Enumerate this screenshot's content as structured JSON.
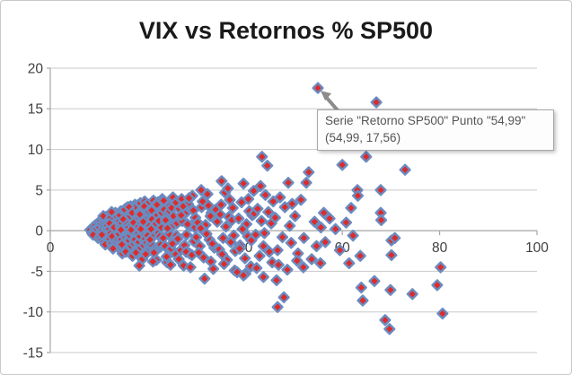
{
  "title": "VIX vs Retornos % SP500",
  "tooltip": {
    "line1": "Serie \"Retorno SP500\" Punto \"54,99\"",
    "line2": "(54,99, 17,56)"
  },
  "colors": {
    "marker_fill": "#dd2b2c",
    "marker_stroke": "#6b8cc0",
    "gridline": "#c9c9c9",
    "axis": "#a6a6a6",
    "tick_label": "#3f3f3f",
    "title_text": "#1a1a1a",
    "cursor": "#8c8c8c",
    "tooltip_border": "#a9a9a9",
    "tooltip_text": "#555555"
  },
  "chart_data": {
    "type": "scatter",
    "title": "VIX vs Retornos % SP500",
    "xlabel": "",
    "ylabel": "",
    "xlim": [
      0,
      100
    ],
    "ylim": [
      -15,
      20
    ],
    "x_ticks": [
      0,
      20,
      40,
      60,
      80,
      100
    ],
    "y_ticks": [
      20,
      15,
      10,
      5,
      0,
      -5,
      -10,
      -15
    ],
    "grid": "horizontal",
    "legend": "none",
    "marker": {
      "shape": "diamond",
      "fill": "#dd2b2c",
      "stroke": "#6b8cc0"
    },
    "series_name": "Retorno SP500",
    "highlighted_point": {
      "x": 54.99,
      "y": 17.56,
      "point_label": "54,99"
    },
    "points": [
      [
        8.2,
        0.1
      ],
      [
        8.6,
        -0.3
      ],
      [
        8.9,
        0.5
      ],
      [
        9.1,
        -0.1
      ],
      [
        9.3,
        0.7
      ],
      [
        9.5,
        -0.6
      ],
      [
        9.6,
        0.3
      ],
      [
        9.8,
        -0.9
      ],
      [
        9.9,
        1.0
      ],
      [
        10.0,
        0.0
      ],
      [
        9.4,
        0.2
      ],
      [
        8.8,
        -0.5
      ],
      [
        10.1,
        0.4
      ],
      [
        10.2,
        -0.7
      ],
      [
        10.3,
        1.2
      ],
      [
        10.4,
        -0.2
      ],
      [
        10.5,
        0.8
      ],
      [
        10.6,
        -1.1
      ],
      [
        10.7,
        0.1
      ],
      [
        10.8,
        1.5
      ],
      [
        10.9,
        -0.4
      ],
      [
        11.0,
        0.6
      ],
      [
        11.1,
        -1.3
      ],
      [
        11.2,
        0.9
      ],
      [
        11.3,
        -0.1
      ],
      [
        11.4,
        1.7
      ],
      [
        11.5,
        -0.8
      ],
      [
        11.6,
        0.3
      ],
      [
        11.7,
        -1.5
      ],
      [
        11.8,
        1.1
      ],
      [
        11.9,
        -0.3
      ],
      [
        12.0,
        0.5
      ],
      [
        10.9,
        1.8
      ],
      [
        11.3,
        -1.7
      ],
      [
        11.7,
        0.7
      ],
      [
        10.6,
        -0.5
      ],
      [
        12.1,
        0.2
      ],
      [
        12.2,
        -1.0
      ],
      [
        12.3,
        1.4
      ],
      [
        12.4,
        -0.3
      ],
      [
        12.5,
        2.0
      ],
      [
        12.6,
        -1.6
      ],
      [
        12.7,
        0.6
      ],
      [
        12.8,
        -2.0
      ],
      [
        12.9,
        1.0
      ],
      [
        13.0,
        -0.6
      ],
      [
        13.1,
        1.8
      ],
      [
        13.2,
        -1.2
      ],
      [
        13.3,
        0.3
      ],
      [
        13.4,
        2.2
      ],
      [
        13.5,
        -0.9
      ],
      [
        13.6,
        0.8
      ],
      [
        13.7,
        -1.9
      ],
      [
        13.8,
        1.3
      ],
      [
        13.9,
        -0.2
      ],
      [
        14.0,
        0.7
      ],
      [
        12.4,
        1.6
      ],
      [
        12.9,
        -2.2
      ],
      [
        13.3,
        2.1
      ],
      [
        13.7,
        -1.4
      ],
      [
        12.2,
        0.9
      ],
      [
        12.7,
        -0.7
      ],
      [
        13.1,
        0.4
      ],
      [
        13.5,
        1.9
      ],
      [
        13.9,
        -1.1
      ],
      [
        12.6,
        2.3
      ],
      [
        14.1,
        -0.4
      ],
      [
        14.2,
        1.2
      ],
      [
        14.3,
        -1.8
      ],
      [
        14.4,
        0.5
      ],
      [
        14.5,
        2.4
      ],
      [
        14.6,
        -1.1
      ],
      [
        14.7,
        0.9
      ],
      [
        14.8,
        -2.4
      ],
      [
        14.9,
        1.6
      ],
      [
        15.0,
        -0.2
      ],
      [
        15.1,
        2.0
      ],
      [
        15.2,
        -1.5
      ],
      [
        15.3,
        0.3
      ],
      [
        15.4,
        2.7
      ],
      [
        15.5,
        -0.8
      ],
      [
        15.6,
        1.1
      ],
      [
        15.7,
        -2.1
      ],
      [
        15.8,
        0.6
      ],
      [
        15.9,
        2.9
      ],
      [
        16.0,
        -0.5
      ],
      [
        14.3,
        1.9
      ],
      [
        14.8,
        -2.8
      ],
      [
        15.2,
        2.3
      ],
      [
        15.7,
        -1.3
      ],
      [
        14.5,
        0.1
      ],
      [
        15.0,
        1.4
      ],
      [
        15.5,
        -2.6
      ],
      [
        15.9,
        0.8
      ],
      [
        14.7,
        -1.7
      ],
      [
        15.3,
        2.6
      ],
      [
        16.1,
        0.4
      ],
      [
        16.2,
        -1.2
      ],
      [
        16.3,
        2.1
      ],
      [
        16.4,
        -0.6
      ],
      [
        16.5,
        3.0
      ],
      [
        16.6,
        -1.9
      ],
      [
        16.7,
        0.8
      ],
      [
        16.8,
        -2.9
      ],
      [
        16.9,
        1.5
      ],
      [
        17.0,
        -0.3
      ],
      [
        17.1,
        2.5
      ],
      [
        17.2,
        -1.6
      ],
      [
        17.3,
        0.2
      ],
      [
        17.4,
        3.2
      ],
      [
        17.5,
        -0.9
      ],
      [
        17.6,
        1.2
      ],
      [
        17.7,
        -2.3
      ],
      [
        17.8,
        0.7
      ],
      [
        17.9,
        3.1
      ],
      [
        18.0,
        -0.4
      ],
      [
        16.4,
        1.8
      ],
      [
        16.9,
        -3.1
      ],
      [
        17.3,
        2.8
      ],
      [
        17.8,
        -1.4
      ],
      [
        16.6,
        0.1
      ],
      [
        17.1,
        1.0
      ],
      [
        17.6,
        -2.7
      ],
      [
        16.2,
        2.9
      ],
      [
        17.4,
        -1.1
      ],
      [
        16.8,
        2.2
      ],
      [
        18.1,
        0.5
      ],
      [
        18.2,
        -1.4
      ],
      [
        18.3,
        2.3
      ],
      [
        18.4,
        -0.7
      ],
      [
        18.5,
        3.4
      ],
      [
        18.6,
        -2.1
      ],
      [
        18.7,
        0.9
      ],
      [
        18.8,
        -3.3
      ],
      [
        18.9,
        1.7
      ],
      [
        19.0,
        -0.2
      ],
      [
        19.1,
        2.7
      ],
      [
        19.2,
        -1.8
      ],
      [
        19.3,
        0.3
      ],
      [
        19.4,
        3.6
      ],
      [
        19.5,
        -1.0
      ],
      [
        19.6,
        1.3
      ],
      [
        19.7,
        -2.5
      ],
      [
        19.8,
        0.8
      ],
      [
        19.9,
        3.3
      ],
      [
        20.0,
        -0.6
      ],
      [
        18.4,
        2.0
      ],
      [
        18.9,
        -3.5
      ],
      [
        19.3,
        3.0
      ],
      [
        19.8,
        -1.5
      ],
      [
        18.6,
        0.2
      ],
      [
        19.1,
        1.1
      ],
      [
        19.6,
        -2.9
      ],
      [
        20.2,
        2.4
      ],
      [
        18.3,
        -4.3
      ],
      [
        20.4,
        0.6
      ],
      [
        20.6,
        -1.6
      ],
      [
        20.8,
        2.5
      ],
      [
        21.0,
        -0.8
      ],
      [
        21.2,
        3.7
      ],
      [
        21.4,
        -2.3
      ],
      [
        21.6,
        1.0
      ],
      [
        21.8,
        -3.6
      ],
      [
        22.0,
        1.9
      ],
      [
        22.2,
        -0.3
      ],
      [
        22.4,
        2.9
      ],
      [
        22.6,
        -2.0
      ],
      [
        22.8,
        0.4
      ],
      [
        23.0,
        3.9
      ],
      [
        20.5,
        -1.1
      ],
      [
        20.9,
        1.4
      ],
      [
        21.3,
        -2.7
      ],
      [
        21.7,
        0.9
      ],
      [
        22.1,
        3.5
      ],
      [
        22.5,
        -0.7
      ],
      [
        22.9,
        2.2
      ],
      [
        21.1,
        -3.8
      ],
      [
        21.9,
        3.2
      ],
      [
        22.7,
        -1.7
      ],
      [
        20.7,
        0.2
      ],
      [
        22.3,
        1.2
      ],
      [
        23.2,
        -0.9
      ],
      [
        23.4,
        2.6
      ],
      [
        23.6,
        -1.9
      ],
      [
        23.8,
        1.1
      ],
      [
        24.0,
        -3.9
      ],
      [
        24.2,
        2.0
      ],
      [
        24.4,
        -0.4
      ],
      [
        24.6,
        3.1
      ],
      [
        24.8,
        -2.2
      ],
      [
        25.0,
        0.5
      ],
      [
        25.2,
        4.1
      ],
      [
        25.4,
        -1.2
      ],
      [
        25.6,
        1.5
      ],
      [
        25.8,
        -2.9
      ],
      [
        26.0,
        0.9
      ],
      [
        23.3,
        3.7
      ],
      [
        23.9,
        -3.2
      ],
      [
        24.5,
        2.4
      ],
      [
        25.1,
        -1.6
      ],
      [
        25.7,
        3.4
      ],
      [
        24.1,
        0.3
      ],
      [
        24.7,
        -4.2
      ],
      [
        25.3,
        1.8
      ],
      [
        25.9,
        -0.6
      ],
      [
        23.7,
        1.3
      ],
      [
        24.9,
        2.8
      ],
      [
        26.2,
        -1.0
      ],
      [
        26.5,
        2.7
      ],
      [
        26.8,
        -2.4
      ],
      [
        27.1,
        1.2
      ],
      [
        27.4,
        -4.3
      ],
      [
        27.7,
        2.1
      ],
      [
        28.0,
        -0.5
      ],
      [
        28.3,
        3.3
      ],
      [
        28.6,
        -2.8
      ],
      [
        28.9,
        0.6
      ],
      [
        29.2,
        4.3
      ],
      [
        29.5,
        -1.3
      ],
      [
        29.8,
        1.6
      ],
      [
        26.4,
        -3.5
      ],
      [
        27.0,
        3.9
      ],
      [
        27.6,
        -1.8
      ],
      [
        28.2,
        0.8
      ],
      [
        28.8,
        -4.5
      ],
      [
        29.4,
        2.5
      ],
      [
        30.0,
        -0.8
      ],
      [
        26.9,
        1.9
      ],
      [
        27.9,
        -2.6
      ],
      [
        28.5,
        4.0
      ],
      [
        29.1,
        -3.0
      ],
      [
        29.7,
        0.4
      ],
      [
        27.3,
        3.0
      ],
      [
        30.3,
        1.0
      ],
      [
        30.7,
        -1.9
      ],
      [
        31.1,
        2.9
      ],
      [
        31.5,
        -3.3
      ],
      [
        31.9,
        0.7
      ],
      [
        32.3,
        4.5
      ],
      [
        32.7,
        -1.1
      ],
      [
        33.1,
        2.2
      ],
      [
        33.5,
        -4.7
      ],
      [
        33.9,
        1.4
      ],
      [
        30.5,
        -2.7
      ],
      [
        31.3,
        3.6
      ],
      [
        32.1,
        -0.4
      ],
      [
        32.9,
        1.8
      ],
      [
        33.7,
        -2.1
      ],
      [
        30.9,
        0.3
      ],
      [
        31.7,
        -5.9
      ],
      [
        32.5,
        3.1
      ],
      [
        33.3,
        -1.6
      ],
      [
        34.0,
        2.6
      ],
      [
        31.0,
        5.0
      ],
      [
        33.0,
        -3.8
      ],
      [
        34.3,
        1.1
      ],
      [
        34.7,
        -2.3
      ],
      [
        35.1,
        3.2
      ],
      [
        35.5,
        -0.9
      ],
      [
        35.9,
        4.7
      ],
      [
        36.3,
        -3.6
      ],
      [
        36.7,
        1.7
      ],
      [
        37.1,
        -1.4
      ],
      [
        37.5,
        2.8
      ],
      [
        37.9,
        -4.9
      ],
      [
        35.2,
        6.1
      ],
      [
        35.3,
        -2.9
      ],
      [
        36.1,
        0.5
      ],
      [
        36.9,
        3.8
      ],
      [
        37.7,
        -0.6
      ],
      [
        34.9,
        2.0
      ],
      [
        35.7,
        -4.1
      ],
      [
        36.5,
        5.2
      ],
      [
        37.3,
        1.3
      ],
      [
        38.0,
        -2.5
      ],
      [
        38.4,
        -5.1
      ],
      [
        38.7,
        1.5
      ],
      [
        39.0,
        -1.8
      ],
      [
        39.3,
        3.5
      ],
      [
        39.7,
        5.8
      ],
      [
        40.0,
        -3.4
      ],
      [
        40.3,
        0.8
      ],
      [
        40.6,
        -0.7
      ],
      [
        40.9,
        2.4
      ],
      [
        41.2,
        -4.4
      ],
      [
        41.5,
        1.9
      ],
      [
        41.8,
        4.9
      ],
      [
        38.9,
        -2.2
      ],
      [
        39.5,
        0.2
      ],
      [
        40.1,
        -5.3
      ],
      [
        40.7,
        3.9
      ],
      [
        41.3,
        -1.2
      ],
      [
        41.9,
        2.1
      ],
      [
        42.2,
        -0.5
      ],
      [
        42.6,
        2.7
      ],
      [
        43.0,
        -3.1
      ],
      [
        43.4,
        1.2
      ],
      [
        43.5,
        9.1
      ],
      [
        43.8,
        -1.9
      ],
      [
        44.2,
        4.4
      ],
      [
        44.6,
        8.0
      ],
      [
        45.0,
        -2.6
      ],
      [
        45.4,
        0.9
      ],
      [
        45.8,
        3.6
      ],
      [
        42.4,
        -4.6
      ],
      [
        43.2,
        5.5
      ],
      [
        44.0,
        -0.3
      ],
      [
        44.8,
        2.3
      ],
      [
        45.6,
        -3.9
      ],
      [
        46.2,
        1.6
      ],
      [
        46.7,
        -2.4
      ],
      [
        47.2,
        4.1
      ],
      [
        47.7,
        -0.8
      ],
      [
        48.0,
        -8.2
      ],
      [
        48.2,
        2.9
      ],
      [
        48.7,
        -4.8
      ],
      [
        49.2,
        0.6
      ],
      [
        49.7,
        3.3
      ],
      [
        46.7,
        -9.4
      ],
      [
        48.9,
        5.9
      ],
      [
        49.5,
        -1.5
      ],
      [
        46.5,
        -6.1
      ],
      [
        50.3,
        1.8
      ],
      [
        50.9,
        -2.8
      ],
      [
        51.5,
        3.8
      ],
      [
        52.1,
        -0.9
      ],
      [
        52.6,
        5.9
      ],
      [
        53.1,
        7.2
      ],
      [
        53.7,
        -3.5
      ],
      [
        54.3,
        1.1
      ],
      [
        54.7,
        -1.9
      ],
      [
        39.7,
        -5.5
      ],
      [
        43.8,
        -5.7
      ],
      [
        46.9,
        -4.2
      ],
      [
        50.7,
        -3.7
      ],
      [
        55.5,
        -4.0
      ],
      [
        52.0,
        -4.5
      ],
      [
        55.6,
        0.4
      ],
      [
        56.5,
        -1.4
      ],
      [
        57.4,
        1.5
      ],
      [
        58.6,
        0.2
      ],
      [
        59.5,
        -2.4
      ],
      [
        60.8,
        1.0
      ],
      [
        62.2,
        -0.6
      ],
      [
        56.2,
        2.2
      ],
      [
        60.0,
        8.1
      ],
      [
        61.4,
        -4.0
      ],
      [
        61.8,
        2.8
      ],
      [
        63.1,
        5.0
      ],
      [
        63.2,
        4.3
      ],
      [
        63.7,
        -3.1
      ],
      [
        63.9,
        -7.0
      ],
      [
        64.2,
        -8.6
      ],
      [
        64.9,
        9.1
      ],
      [
        66.6,
        -6.2
      ],
      [
        67.0,
        15.8
      ],
      [
        67.9,
        5.0
      ],
      [
        67.9,
        2.2
      ],
      [
        68.0,
        1.3
      ],
      [
        68.8,
        -11.0
      ],
      [
        69.7,
        -12.1
      ],
      [
        69.9,
        -7.3
      ],
      [
        70.1,
        -1.2
      ],
      [
        70.8,
        -0.9
      ],
      [
        70.1,
        -3.0
      ],
      [
        72.9,
        7.5
      ],
      [
        74.4,
        -7.8
      ],
      [
        79.5,
        -6.7
      ],
      [
        80.2,
        -4.5
      ],
      [
        80.6,
        -10.2
      ]
    ]
  }
}
